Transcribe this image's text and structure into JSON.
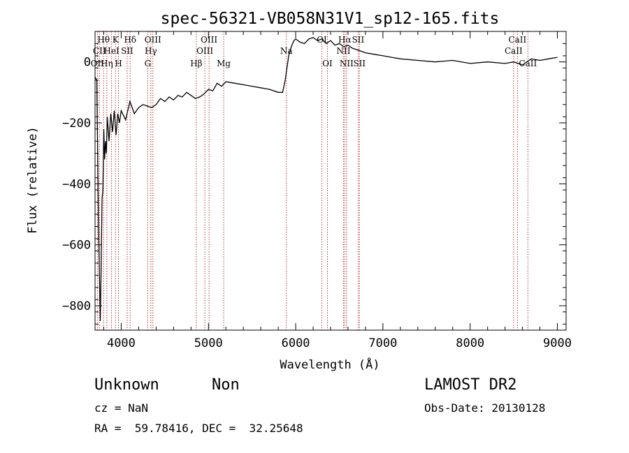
{
  "chart_data": {
    "type": "line",
    "title": "spec-56321-VB058N31V1_sp12-165.fits",
    "xlabel": "Wavelength (Å)",
    "ylabel": "Flux (relative)",
    "xlim": [
      3700,
      9100
    ],
    "ylim": [
      -880,
      100
    ],
    "xticks": [
      4000,
      5000,
      6000,
      7000,
      8000,
      9000
    ],
    "xtick_labels": [
      "4000",
      "5000",
      "6000",
      "7000",
      "8000",
      "9000"
    ],
    "yticks": [
      -800,
      -600,
      -400,
      -200,
      0
    ],
    "ytick_labels": [
      "−800",
      "−600",
      "−400",
      "−200",
      "0"
    ],
    "series": [
      {
        "x": [
          3700,
          3720,
          3740,
          3760,
          3770,
          3780,
          3790,
          3800,
          3810,
          3820,
          3830,
          3840,
          3860,
          3880,
          3900,
          3920,
          3940,
          3960,
          3980,
          4000,
          4050,
          4100,
          4150,
          4200,
          4250,
          4300,
          4350,
          4400,
          4450,
          4500,
          4550,
          4600,
          4650,
          4700,
          4750,
          4800,
          4850,
          4900,
          4950,
          5000,
          5050,
          5100,
          5150,
          5200,
          5300,
          5400,
          5500,
          5600,
          5700,
          5800,
          5850,
          5880,
          5900,
          5920,
          5950,
          5980,
          6000,
          6050,
          6100,
          6150,
          6200,
          6250,
          6300,
          6350,
          6400,
          6450,
          6500,
          6550,
          6600,
          6650,
          6700,
          6750,
          6800,
          6900,
          7000,
          7100,
          7200,
          7400,
          7600,
          7800,
          8000,
          8200,
          8400,
          8500,
          8600,
          8700,
          8800,
          8900,
          9000
        ],
        "values": [
          -50,
          -60,
          -540,
          -850,
          -680,
          -450,
          -420,
          -220,
          -320,
          -260,
          -300,
          -180,
          -260,
          -170,
          -230,
          -160,
          -240,
          -170,
          -200,
          -160,
          -190,
          -130,
          -170,
          -150,
          -140,
          -145,
          -150,
          -140,
          -120,
          -130,
          -115,
          -125,
          -110,
          -115,
          -100,
          -110,
          -120,
          -115,
          -105,
          -90,
          -95,
          -70,
          -80,
          -65,
          -70,
          -75,
          -80,
          -85,
          -90,
          -100,
          -100,
          -60,
          -20,
          20,
          50,
          70,
          75,
          65,
          60,
          75,
          80,
          70,
          75,
          60,
          70,
          55,
          60,
          50,
          55,
          45,
          40,
          35,
          30,
          25,
          20,
          15,
          10,
          5,
          0,
          5,
          -5,
          0,
          -5,
          0,
          -10,
          10,
          5,
          10,
          15
        ]
      }
    ],
    "lines": [
      {
        "label": "OII",
        "wave": 3727,
        "row": 3
      },
      {
        "label": "Hθ",
        "wave": 3798,
        "row": 1
      },
      {
        "label": "CII",
        "wave": 3750,
        "row": 2
      },
      {
        "label": "Hη",
        "wave": 3835,
        "row": 3
      },
      {
        "label": "HeI",
        "wave": 3889,
        "row": 2
      },
      {
        "label": "K",
        "wave": 3934,
        "row": 1
      },
      {
        "label": "H",
        "wave": 3969,
        "row": 3
      },
      {
        "label": "SII",
        "wave": 4068,
        "row": 2
      },
      {
        "label": "Hδ",
        "wave": 4102,
        "row": 1
      },
      {
        "label": "G",
        "wave": 4304,
        "row": 3
      },
      {
        "label": "Hγ",
        "wave": 4340,
        "row": 2
      },
      {
        "label": "OIII",
        "wave": 4363,
        "row": 1
      },
      {
        "label": "Hβ",
        "wave": 4861,
        "row": 3
      },
      {
        "label": "OIII",
        "wave": 4959,
        "row": 2
      },
      {
        "label": "OIII",
        "wave": 5007,
        "row": 1
      },
      {
        "label": "Mg",
        "wave": 5175,
        "row": 3
      },
      {
        "label": "Na",
        "wave": 5893,
        "row": 2
      },
      {
        "label": "OI",
        "wave": 6300,
        "row": 1
      },
      {
        "label": "OI",
        "wave": 6364,
        "row": 3
      },
      {
        "label": "NII",
        "wave": 6548,
        "row": 2
      },
      {
        "label": "Hα",
        "wave": 6563,
        "row": 1
      },
      {
        "label": "NII",
        "wave": 6583,
        "row": 3
      },
      {
        "label": "SII",
        "wave": 6716,
        "row": 1
      },
      {
        "label": "SII",
        "wave": 6731,
        "row": 3
      },
      {
        "label": "CaII",
        "wave": 8498,
        "row": 2
      },
      {
        "label": "CaII",
        "wave": 8542,
        "row": 1
      },
      {
        "label": "CaII",
        "wave": 8662,
        "row": 3
      }
    ],
    "grid": false,
    "legend": "none"
  },
  "info": {
    "object_class": "Unknown",
    "subclass": "Non",
    "survey": "LAMOST DR2",
    "cz": "cz = NaN",
    "obs_date": "Obs-Date: 20130128",
    "coords": "RA =  59.78416, DEC =  32.25648"
  },
  "colors": {
    "spectrum": "#000000",
    "line_marker": "#b22222",
    "axes": "#000000",
    "background": "#ffffff"
  }
}
